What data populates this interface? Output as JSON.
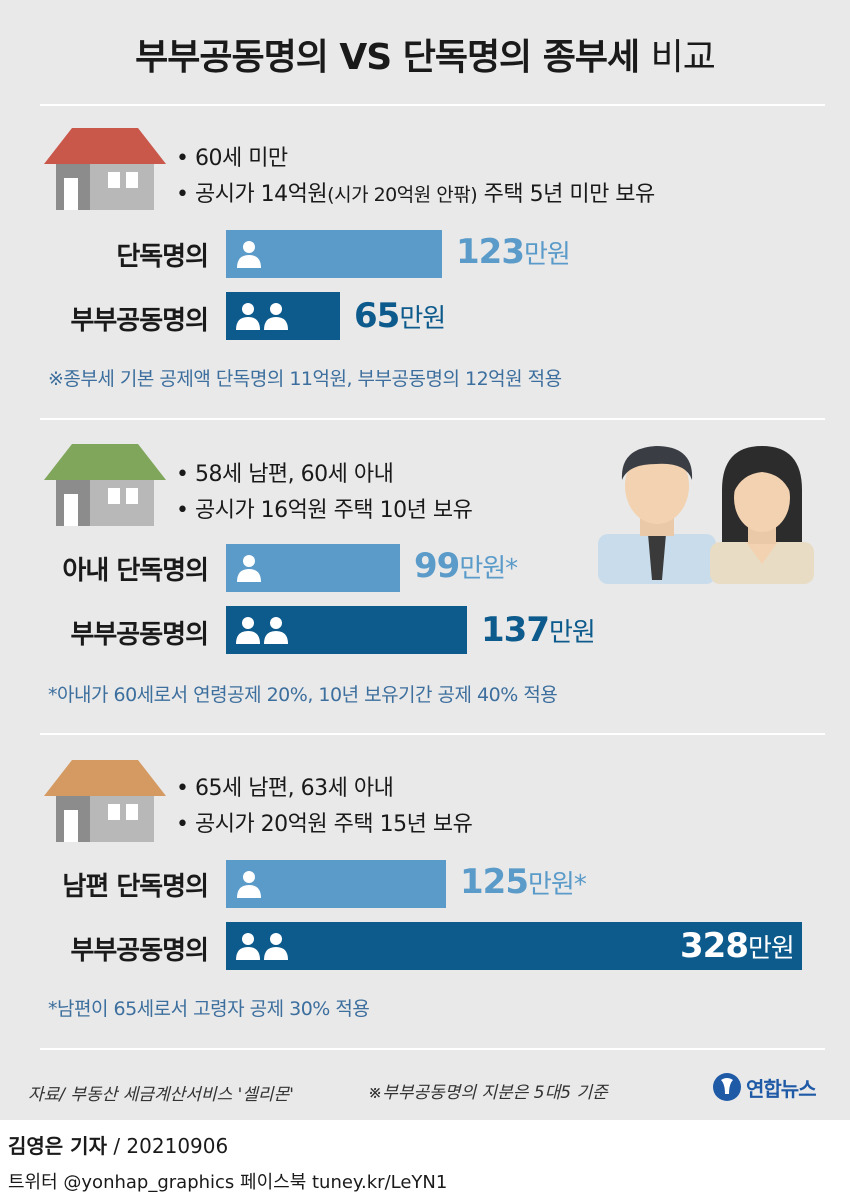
{
  "title": {
    "main": "부부공동명의 VS 단독명의 종부세",
    "suffix": "비교"
  },
  "colors": {
    "single_bar": "#5b9bc9",
    "joint_bar": "#0d5a8c",
    "note_text": "#3d6f9e",
    "background": "#e9e9e9"
  },
  "cases": [
    {
      "roof_color": "#c9574a",
      "bullets": [
        "• 60세 미만",
        "• 공시가 14억원",
        "(시가 20억원 안팎)",
        " 주택 5년 미만 보유"
      ],
      "rows": [
        {
          "label": "단독명의",
          "value": "123",
          "unit": "만원",
          "mark": ""
        },
        {
          "label": "부부공동명의",
          "value": "65",
          "unit": "만원",
          "mark": ""
        }
      ],
      "note": "※종부세 기본 공제액 단독명의 11억원, 부부공동명의 12억원 적용"
    },
    {
      "roof_color": "#7fa65a",
      "bullets": [
        "• 58세 남편, 60세 아내",
        "• 공시가 16억원 주택 10년 보유"
      ],
      "rows": [
        {
          "label": "아내 단독명의",
          "value": "99",
          "unit": "만원",
          "mark": "*"
        },
        {
          "label": "부부공동명의",
          "value": "137",
          "unit": "만원",
          "mark": ""
        }
      ],
      "note": "*아내가 60세로서 연령공제 20%, 10년 보유기간 공제 40% 적용"
    },
    {
      "roof_color": "#d49a62",
      "bullets": [
        "• 65세 남편, 63세 아내",
        "• 공시가 20억원 주택 15년 보유"
      ],
      "rows": [
        {
          "label": "남편 단독명의",
          "value": "125",
          "unit": "만원",
          "mark": "*"
        },
        {
          "label": "부부공동명의",
          "value": "328",
          "unit": "만원",
          "mark": ""
        }
      ],
      "note": "*남편이 65세로서 고령자 공제 30% 적용"
    }
  ],
  "chart_data": {
    "type": "bar",
    "unit": "만원",
    "categories": [
      "단독명의",
      "부부공동명의",
      "아내 단독명의",
      "부부공동명의",
      "남편 단독명의",
      "부부공동명의"
    ],
    "values": [
      123,
      65,
      99,
      137,
      125,
      328
    ]
  },
  "footer": {
    "source": "자료/ 부동산 세금계산서비스 '셀리몬'",
    "basis": "※부부공동명의 지분은 5대5 기준",
    "logo": "연합뉴스"
  },
  "credits": {
    "reporter": "김영은 기자",
    "date": " / 20210906",
    "social": "트위터 @yonhap_graphics  페이스북 tuney.kr/LeYN1"
  }
}
